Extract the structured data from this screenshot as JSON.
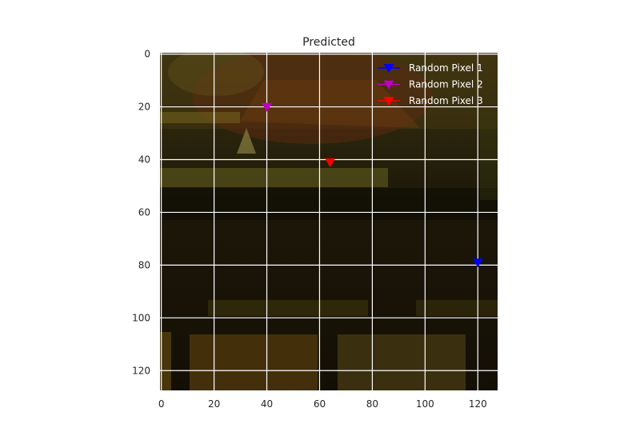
{
  "chart_data": {
    "type": "scatter",
    "title": "Predicted",
    "xlabel": "",
    "ylabel": "",
    "xlim": [
      -0.5,
      127.5
    ],
    "ylim": [
      127.5,
      -0.5
    ],
    "y_inverted": true,
    "grid": true,
    "background": "image",
    "x_ticks": [
      0,
      20,
      40,
      60,
      80,
      100,
      120
    ],
    "y_ticks": [
      0,
      20,
      40,
      60,
      80,
      100,
      120
    ],
    "legend": {
      "placement": "top-right"
    },
    "series": [
      {
        "name": "Random Pixel 1",
        "color": "#0000ff",
        "marker": "triangle-down",
        "x": [
          120
        ],
        "y": [
          79
        ]
      },
      {
        "name": "Random Pixel 2",
        "color": "#bf00bf",
        "marker": "triangle-down",
        "x": [
          40
        ],
        "y": [
          20
        ]
      },
      {
        "name": "Random Pixel 3",
        "color": "#ff0000",
        "marker": "triangle-down",
        "x": [
          64
        ],
        "y": [
          41
        ]
      }
    ]
  }
}
